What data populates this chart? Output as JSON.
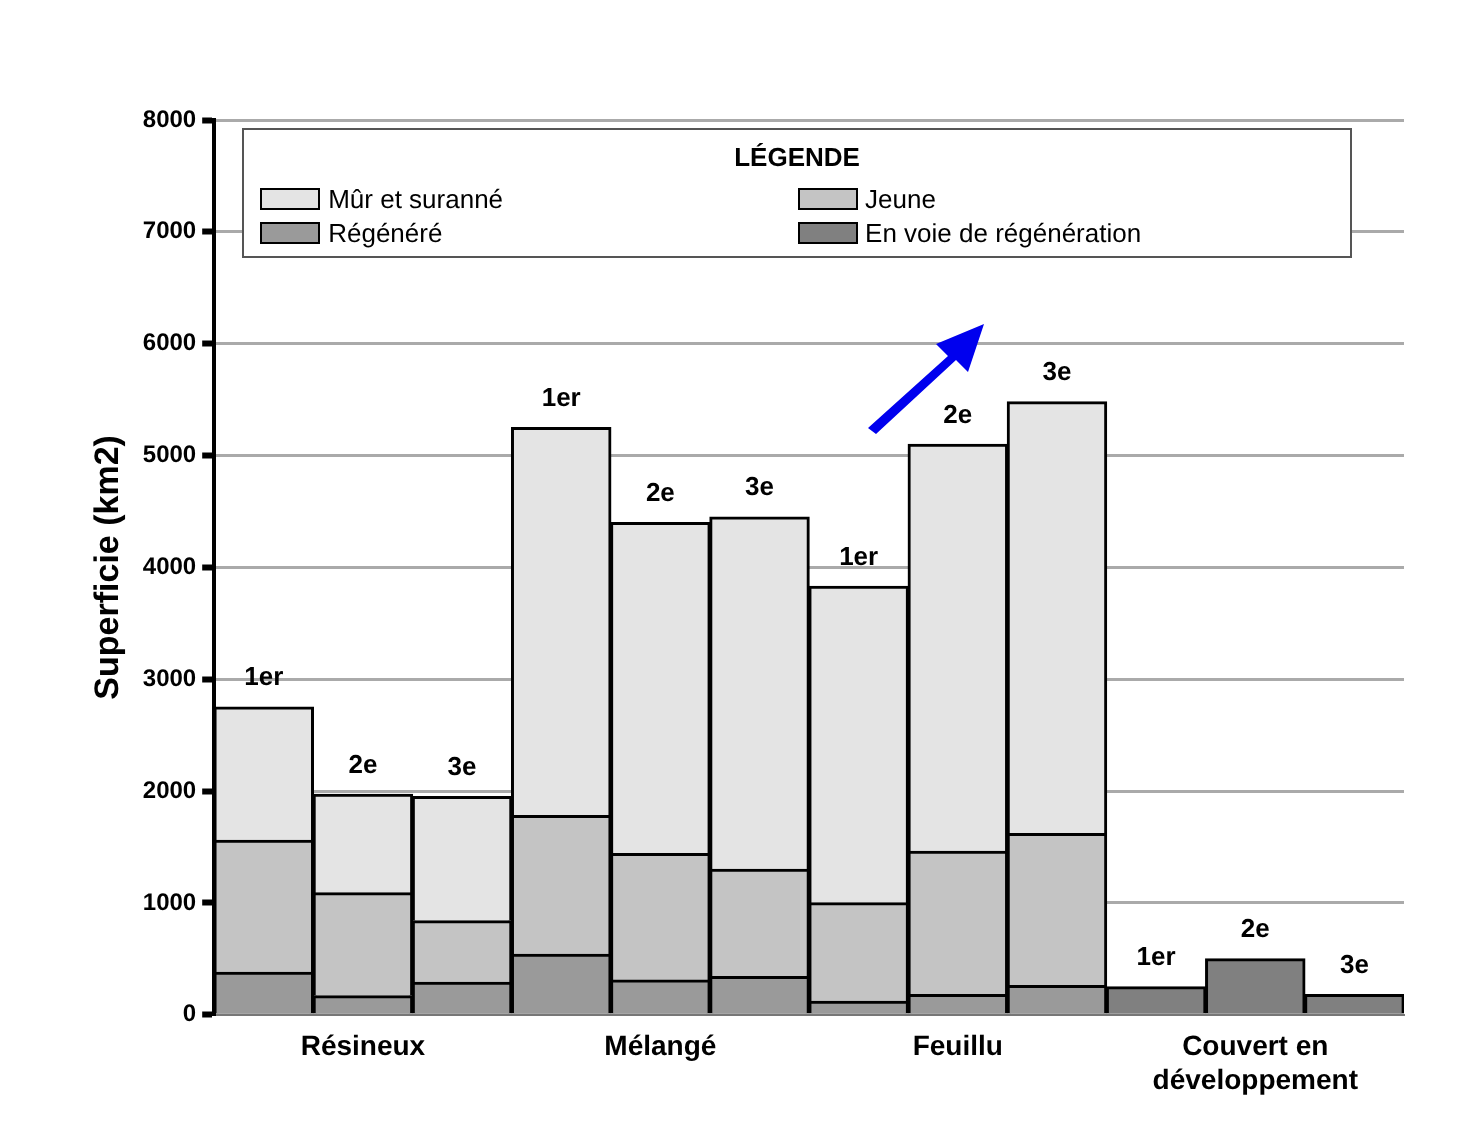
{
  "chart_data": {
    "type": "bar",
    "stacked": true,
    "ylabel": "Superficie (km2)",
    "legend_title": "LÉGENDE",
    "categories": [
      null,
      "Résineux",
      null,
      null,
      "Mélangé",
      null,
      null,
      "Feuillu",
      null,
      null,
      "Couvert en développement",
      null
    ],
    "series": [
      {
        "name": "Régénéré",
        "color": "#9a9a9a",
        "values": [
          380,
          170,
          290,
          540,
          310,
          340,
          120,
          180,
          260,
          null,
          null,
          null
        ]
      },
      {
        "name": "Jeune",
        "color": "#c4c4c4",
        "values": [
          1180,
          920,
          550,
          1240,
          1130,
          960,
          880,
          1280,
          1360,
          null,
          null,
          null
        ]
      },
      {
        "name": "Mûr et suranné",
        "color": "#e4e4e4",
        "values": [
          1190,
          880,
          1110,
          3470,
          2960,
          3150,
          2830,
          3640,
          3860,
          null,
          null,
          null
        ]
      },
      {
        "name": "En voie de régénération",
        "color": "#808080",
        "values": [
          null,
          null,
          null,
          null,
          null,
          null,
          null,
          null,
          null,
          250,
          500,
          180
        ]
      }
    ],
    "annotations": [
      "1er",
      "2e",
      "3e",
      "1er",
      "2e",
      "3e",
      "1er",
      "2e",
      "3e",
      "1er",
      "2e",
      "3e"
    ],
    "ylim": [
      0,
      8000
    ],
    "yticks": [
      0,
      1000,
      2000,
      3000,
      4000,
      5000,
      6000,
      7000,
      8000
    ],
    "grid": "y",
    "legend": "top"
  }
}
